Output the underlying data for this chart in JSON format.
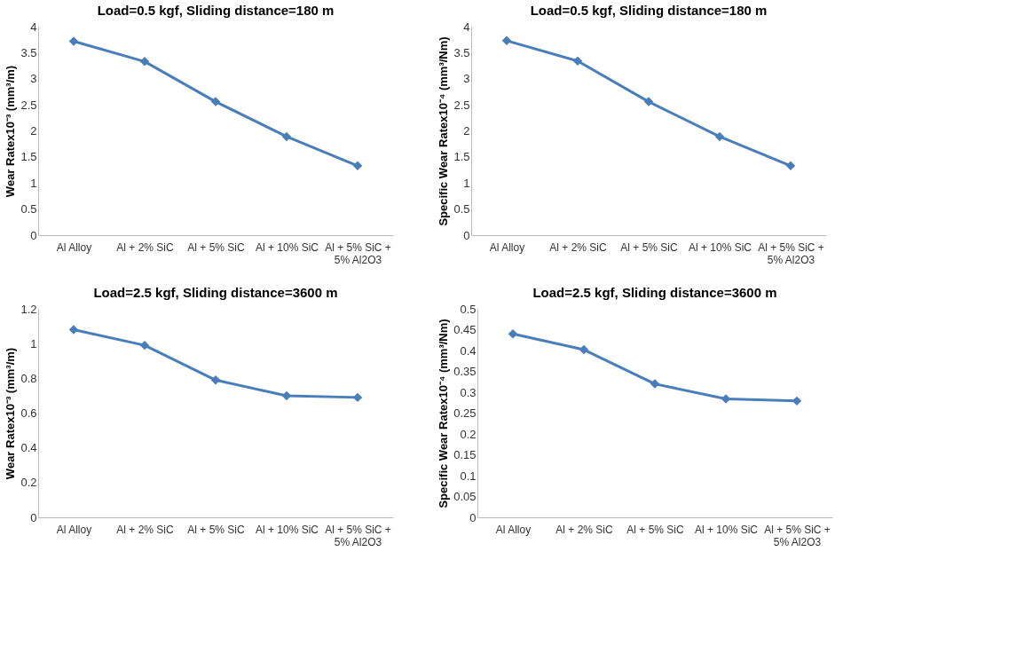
{
  "chart_data": [
    {
      "type": "line",
      "title": "Load=0.5 kgf, Sliding distance=180 m",
      "ylabel": "Wear Ratex10⁻³ (mm³/m)",
      "categories": [
        "Al Alloy",
        "Al + 2% SiC",
        "Al + 5% SiC",
        "Al + 10% SiC",
        "Al + 5% SiC + 5%  Al2O3"
      ],
      "ylim": [
        0,
        4
      ],
      "yticks": [
        0,
        0.5,
        1,
        1.5,
        2,
        2.5,
        3,
        3.5,
        4
      ],
      "marker": "diamond",
      "series": [
        {
          "color": "#4a7ebb",
          "values": [
            3.72,
            3.33,
            2.56,
            1.89,
            1.33
          ]
        }
      ]
    },
    {
      "type": "line",
      "title": "Load=0.5 kgf, Sliding distance=180 m",
      "ylabel": "Specific Wear Ratex10⁻⁴ (mm³/Nm)",
      "categories": [
        "Al Alloy",
        "Al + 2% SiC",
        "Al + 5% SiC",
        "Al + 10% SiC",
        "Al + 5% SiC + 5%  Al2O3"
      ],
      "ylim": [
        0,
        4
      ],
      "yticks": [
        0,
        0.5,
        1,
        1.5,
        2,
        2.5,
        3,
        3.5,
        4
      ],
      "marker": "diamond",
      "series": [
        {
          "color": "#4a7ebb",
          "values": [
            3.73,
            3.34,
            2.56,
            1.89,
            1.33
          ]
        }
      ]
    },
    {
      "type": "line",
      "title": "Load=2.5 kgf, Sliding distance=3600 m",
      "ylabel": "Wear Ratex10⁻³ (mm³/m)",
      "categories": [
        "Al Alloy",
        "Al + 2% SiC",
        "Al + 5% SiC",
        "Al + 10% SiC",
        "Al + 5% SiC + 5%  Al2O3"
      ],
      "ylim": [
        0,
        1.2
      ],
      "yticks": [
        0,
        0.2,
        0.4,
        0.6,
        0.8,
        1,
        1.2
      ],
      "marker": "diamond",
      "series": [
        {
          "color": "#4a7ebb",
          "values": [
            1.08,
            0.99,
            0.79,
            0.7,
            0.69
          ]
        }
      ]
    },
    {
      "type": "line",
      "title": "Load=2.5 kgf, Sliding distance=3600 m",
      "ylabel": "Specific Wear Ratex10⁻⁴ (mm³/Nm)",
      "categories": [
        "Al Alloy",
        "Al + 2% SiC",
        "Al + 5% SiC",
        "Al + 10% SiC",
        "Al + 5% SiC + 5%  Al2O3"
      ],
      "ylim": [
        0,
        0.5
      ],
      "yticks": [
        0,
        0.05,
        0.1,
        0.15,
        0.2,
        0.25,
        0.3,
        0.35,
        0.4,
        0.45,
        0.5
      ],
      "marker": "diamond",
      "series": [
        {
          "color": "#4a7ebb",
          "values": [
            0.44,
            0.402,
            0.32,
            0.284,
            0.279
          ]
        }
      ]
    }
  ]
}
